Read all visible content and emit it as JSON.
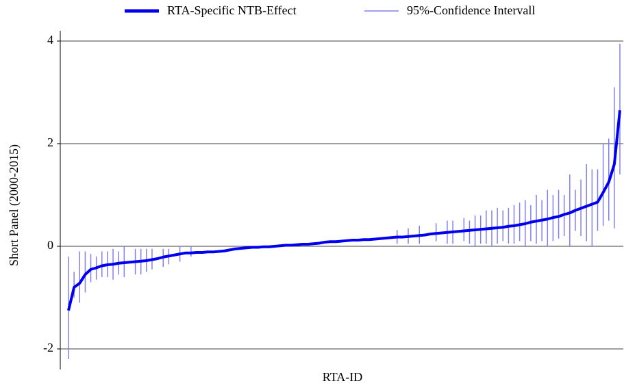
{
  "chart_data": {
    "type": "line",
    "x_label": "RTA-ID",
    "y_label": "Short Panel (2000-2015)",
    "ylim": [
      -2.4,
      4.2
    ],
    "yticks": [
      -2,
      0,
      2,
      4
    ],
    "grid": true,
    "legend": "top",
    "series": [
      {
        "name": "RTA-Specific NTB-Effect",
        "color": "#0000ee",
        "values": [
          -1.25,
          -0.8,
          -0.72,
          -0.55,
          -0.45,
          -0.42,
          -0.38,
          -0.36,
          -0.35,
          -0.33,
          -0.32,
          -0.31,
          -0.3,
          -0.29,
          -0.28,
          -0.26,
          -0.24,
          -0.21,
          -0.19,
          -0.17,
          -0.15,
          -0.13,
          -0.13,
          -0.12,
          -0.12,
          -0.11,
          -0.11,
          -0.1,
          -0.09,
          -0.07,
          -0.05,
          -0.04,
          -0.03,
          -0.02,
          -0.02,
          -0.01,
          -0.01,
          0,
          0.01,
          0.02,
          0.02,
          0.03,
          0.04,
          0.04,
          0.05,
          0.06,
          0.08,
          0.09,
          0.09,
          0.1,
          0.11,
          0.12,
          0.12,
          0.13,
          0.13,
          0.14,
          0.15,
          0.16,
          0.17,
          0.18,
          0.18,
          0.19,
          0.2,
          0.21,
          0.22,
          0.24,
          0.25,
          0.26,
          0.27,
          0.28,
          0.29,
          0.3,
          0.31,
          0.32,
          0.33,
          0.34,
          0.35,
          0.36,
          0.37,
          0.39,
          0.4,
          0.42,
          0.44,
          0.47,
          0.49,
          0.51,
          0.53,
          0.56,
          0.58,
          0.62,
          0.65,
          0.7,
          0.74,
          0.78,
          0.82,
          0.86,
          1.05,
          1.25,
          1.6,
          2.65
        ]
      },
      {
        "name": "95%-Confidence Intervall",
        "color": "#8080ee",
        "lower": [
          -2.2,
          -1.0,
          -1.1,
          -0.9,
          -0.7,
          -0.65,
          -0.6,
          -0.6,
          -0.65,
          -0.55,
          -0.6,
          null,
          -0.55,
          -0.55,
          -0.5,
          -0.45,
          null,
          -0.4,
          -0.35,
          null,
          -0.3,
          null,
          -0.2,
          null,
          null,
          null,
          null,
          null,
          null,
          null,
          null,
          null,
          null,
          null,
          null,
          null,
          null,
          null,
          null,
          null,
          null,
          null,
          null,
          null,
          null,
          null,
          null,
          null,
          null,
          null,
          null,
          null,
          null,
          null,
          null,
          null,
          null,
          null,
          null,
          0.05,
          null,
          0.05,
          null,
          0.05,
          null,
          null,
          0.1,
          null,
          0.05,
          0.05,
          null,
          0.1,
          0.05,
          0,
          0.05,
          0.05,
          0,
          0.05,
          0.1,
          0.05,
          0.05,
          0.1,
          0,
          0.1,
          0.05,
          0.1,
          0,
          0.1,
          0.15,
          0.2,
          0,
          0.3,
          0.2,
          0.1,
          0,
          0.3,
          0.4,
          0.5,
          0.35,
          1.4
        ],
        "upper": [
          -0.2,
          -0.5,
          -0.1,
          -0.1,
          -0.15,
          -0.2,
          -0.1,
          -0.1,
          -0.05,
          -0.1,
          0,
          null,
          -0.05,
          -0.05,
          -0.05,
          -0.05,
          null,
          -0.05,
          -0.05,
          null,
          0,
          null,
          0,
          null,
          null,
          null,
          null,
          null,
          null,
          null,
          null,
          null,
          null,
          null,
          null,
          null,
          null,
          null,
          null,
          null,
          null,
          null,
          null,
          null,
          null,
          null,
          null,
          null,
          null,
          null,
          null,
          null,
          null,
          null,
          null,
          null,
          null,
          null,
          null,
          0.32,
          null,
          0.35,
          null,
          0.4,
          null,
          null,
          0.45,
          null,
          0.5,
          0.5,
          null,
          0.55,
          0.5,
          0.6,
          0.6,
          0.7,
          0.7,
          0.75,
          0.7,
          0.75,
          0.8,
          0.85,
          0.9,
          0.8,
          1.0,
          0.9,
          1.1,
          1.0,
          1.1,
          1.0,
          1.4,
          1.1,
          1.3,
          1.6,
          1.5,
          1.5,
          2.0,
          2.1,
          3.1,
          3.95
        ]
      }
    ]
  }
}
